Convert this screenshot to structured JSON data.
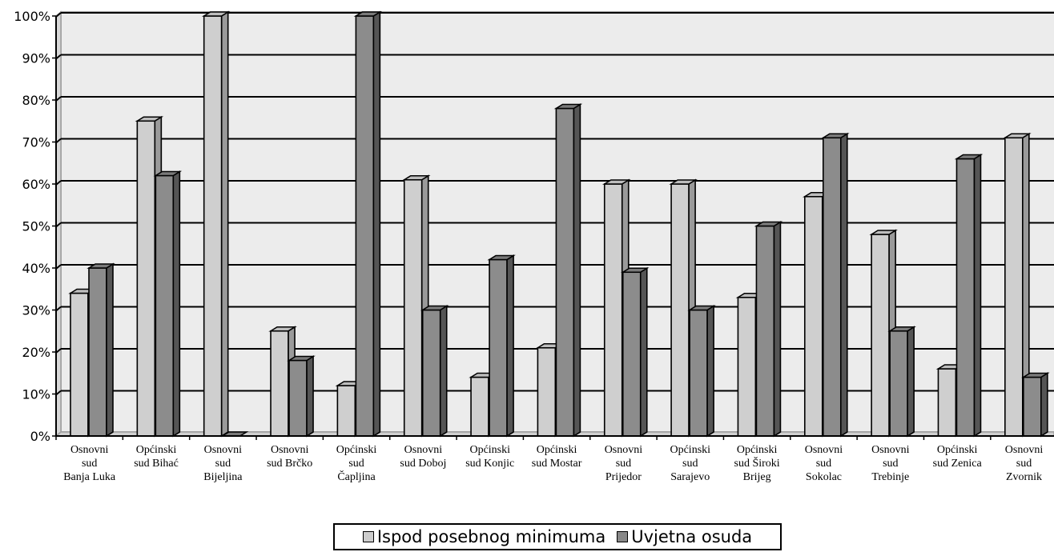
{
  "chart_data": {
    "type": "bar",
    "categories": [
      [
        "Osnovni",
        "sud",
        "Banja Luka"
      ],
      [
        "Općinski",
        "sud Bihać"
      ],
      [
        "Osnovni",
        "sud",
        "Bijeljina"
      ],
      [
        "Osnovni",
        "sud Brčko"
      ],
      [
        "Općinski",
        "sud",
        "Čapljina"
      ],
      [
        "Osnovni",
        "sud Doboj"
      ],
      [
        "Općinski",
        "sud Konjic"
      ],
      [
        "Općinski",
        "sud Mostar"
      ],
      [
        "Osnovni",
        "sud",
        "Prijedor"
      ],
      [
        "Općinski",
        "sud",
        "Sarajevo"
      ],
      [
        "Općinski",
        "sud Široki",
        "Brijeg"
      ],
      [
        "Osnovni",
        "sud",
        "Sokolac"
      ],
      [
        "Osnovni",
        "sud",
        "Trebinje"
      ],
      [
        "Općinski",
        "sud Zenica"
      ],
      [
        "Osnovni",
        "sud",
        "Zvornik"
      ]
    ],
    "series": [
      {
        "name": "Ispod posebnog minimuma",
        "color": "#cccccc",
        "values": [
          34,
          75,
          100,
          25,
          12,
          61,
          14,
          21,
          60,
          60,
          33,
          57,
          48,
          16,
          71
        ]
      },
      {
        "name": "Uvjetna osuda",
        "color": "#888888",
        "values": [
          40,
          62,
          0,
          18,
          100,
          30,
          42,
          78,
          39,
          30,
          50,
          71,
          25,
          66,
          14
        ]
      }
    ],
    "y_ticks": [
      "0%",
      "10%",
      "20%",
      "30%",
      "40%",
      "50%",
      "60%",
      "70%",
      "80%",
      "90%",
      "100%"
    ],
    "ylim": [
      0,
      100
    ],
    "grid": true,
    "legend_position": "bottom",
    "plot_background": "#ececec"
  }
}
